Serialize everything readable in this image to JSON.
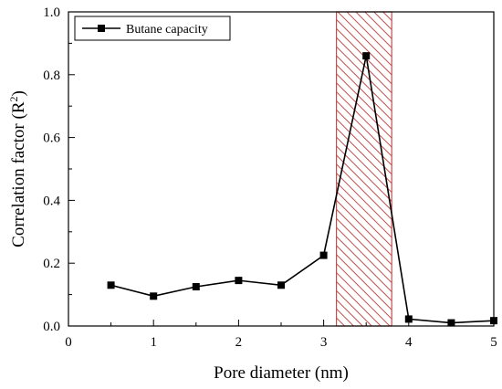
{
  "chart_data": {
    "type": "line",
    "xlabel": "Pore diameter (nm)",
    "ylabel_main": "Correlation factor (R",
    "ylabel_sup": "2",
    "ylabel_end": ")",
    "xlim": [
      0,
      5
    ],
    "ylim": [
      0,
      1.0
    ],
    "xticks": [
      "0",
      "1",
      "2",
      "3",
      "4",
      "5"
    ],
    "yticks": [
      "0.0",
      "0.2",
      "0.4",
      "0.6",
      "0.8",
      "1.0"
    ],
    "grid": false,
    "legend_position": "top-left",
    "highlight_band": {
      "x_from": 3.15,
      "x_to": 3.8,
      "color": "#c0504d"
    },
    "series": [
      {
        "name": "Butane capacity",
        "color": "#000000",
        "marker": "square",
        "x": [
          0.5,
          1.0,
          1.5,
          2.0,
          2.5,
          3.0,
          3.5,
          4.0,
          4.5,
          5.0
        ],
        "y": [
          0.13,
          0.095,
          0.125,
          0.145,
          0.13,
          0.225,
          0.86,
          0.022,
          0.01,
          0.017
        ]
      }
    ]
  }
}
